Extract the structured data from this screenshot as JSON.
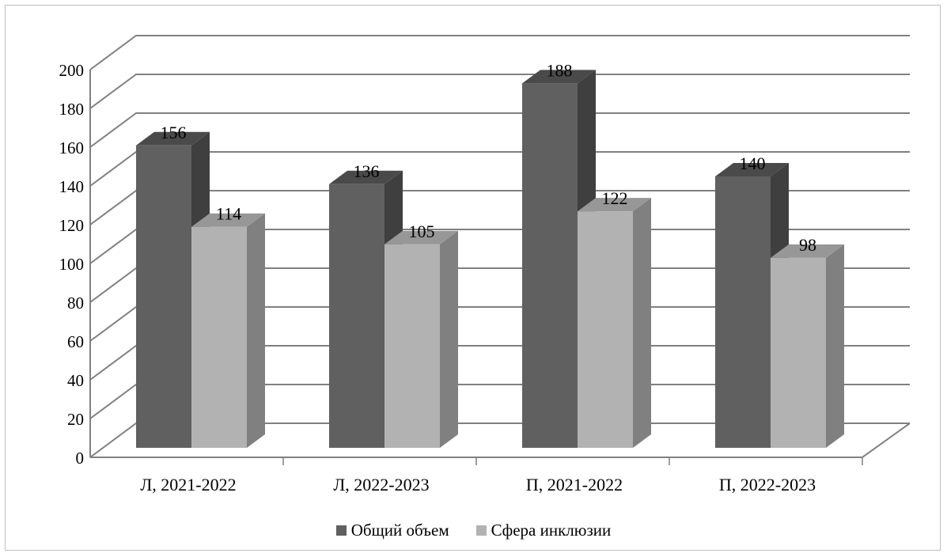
{
  "chart_data": {
    "type": "bar",
    "categories": [
      "Л, 2021-2022",
      "Л, 2022-2023",
      "П, 2021-2022",
      "П, 2022-2023"
    ],
    "series": [
      {
        "name": "Общий объем",
        "values": [
          156,
          136,
          188,
          140
        ]
      },
      {
        "name": "Сфера инклюзии",
        "values": [
          114,
          105,
          122,
          98
        ]
      }
    ],
    "ylim": [
      0,
      200
    ],
    "y_ticks": [
      "0",
      "20",
      "40",
      "60",
      "80",
      "100",
      "120",
      "140",
      "160",
      "180",
      "200"
    ],
    "grid": true,
    "style_3d": true,
    "legend_position": "bottom",
    "colors": {
      "series_front": [
        "#606060",
        "#b2b2b2"
      ],
      "series_side": [
        "#3f3f3f",
        "#808080"
      ],
      "series_top": [
        "#4a4a4a",
        "#979797"
      ],
      "grid": "#808080"
    }
  }
}
